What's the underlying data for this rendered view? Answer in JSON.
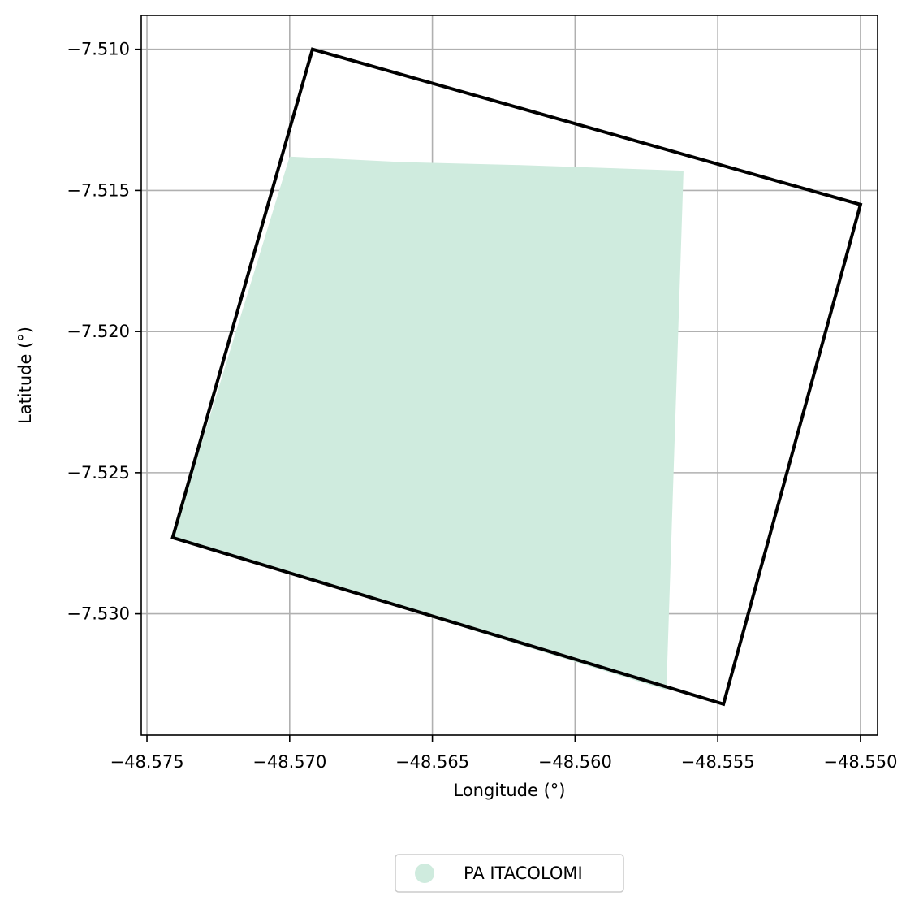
{
  "chart_data": {
    "type": "map",
    "xlabel": "Longitude (°)",
    "ylabel": "Latitude (°)",
    "xlim": [
      -48.5752,
      -48.5494
    ],
    "ylim": [
      -7.5343,
      -7.5088
    ],
    "xticks": [
      -48.575,
      -48.57,
      -48.565,
      -48.56,
      -48.555,
      -48.55
    ],
    "xtick_labels": [
      "−48.575",
      "−48.570",
      "−48.565",
      "−48.560",
      "−48.555",
      "−48.550"
    ],
    "yticks": [
      -7.51,
      -7.515,
      -7.52,
      -7.525,
      -7.53
    ],
    "ytick_labels": [
      "−7.510",
      "−7.515",
      "−7.520",
      "−7.525",
      "−7.530"
    ],
    "grid": true,
    "legend_position": "bottom-center",
    "series": [
      {
        "name": "PA ITACOLOMI",
        "kind": "filled-polygon",
        "color": "#cfebde",
        "points": [
          [
            -48.57,
            -7.5138
          ],
          [
            -48.566,
            -7.514
          ],
          [
            -48.562,
            -7.5141
          ],
          [
            -48.5562,
            -7.5143
          ],
          [
            -48.5568,
            -7.5327
          ],
          [
            -48.5741,
            -7.5273
          ]
        ]
      },
      {
        "kind": "outline",
        "color": "#000000",
        "points": [
          [
            -48.5692,
            -7.51
          ],
          [
            -48.55,
            -7.5155
          ],
          [
            -48.5548,
            -7.5332
          ],
          [
            -48.5741,
            -7.5273
          ]
        ]
      }
    ]
  }
}
